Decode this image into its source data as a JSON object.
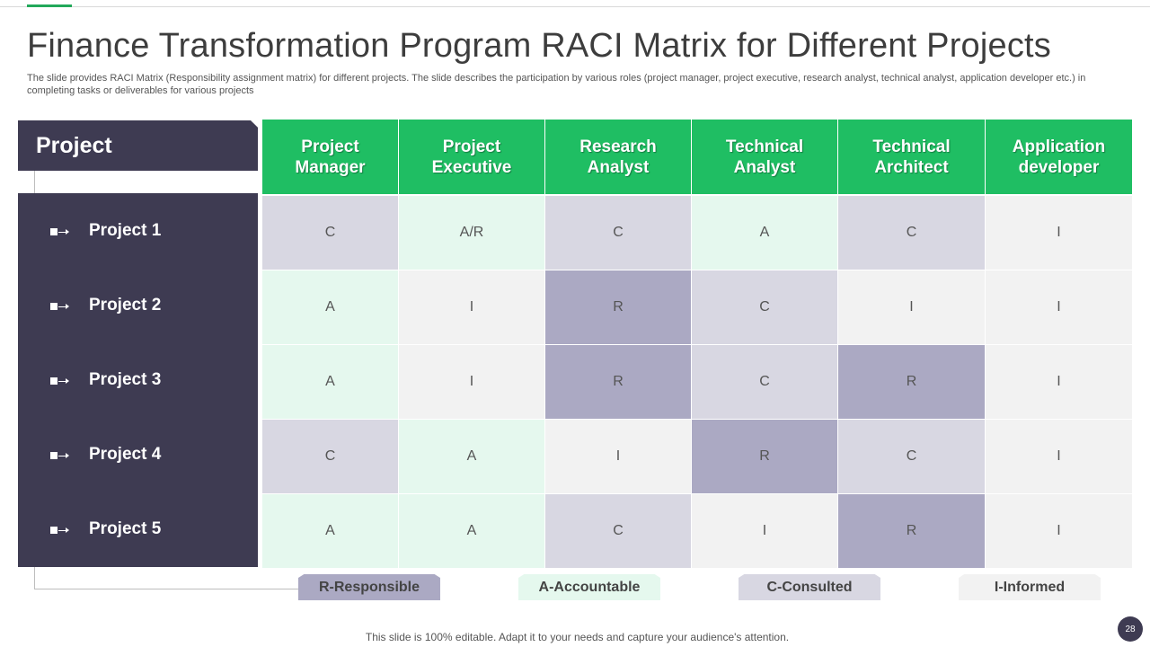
{
  "slide": {
    "title": "Finance Transformation Program RACI Matrix for Different Projects",
    "subtitle": "The slide provides RACI Matrix (Responsibility assignment matrix) for different projects. The slide describes the participation by various roles (project manager, project executive, research analyst, technical analyst, application developer etc.) in completing tasks or deliverables for various projects",
    "footer": "This slide is 100% editable. Adapt it to your needs and capture your audience's attention.",
    "page_number": "28"
  },
  "colors": {
    "header_green": "#1fbe63",
    "sidebar_navy": "#3e3b52",
    "responsible": "#aba9c3",
    "accountable": "#e5f8ee",
    "consulted": "#d8d7e2",
    "informed": "#f2f2f2"
  },
  "matrix": {
    "row_header_title": "Project",
    "columns": [
      "Project Manager",
      "Project Executive",
      "Research Analyst",
      "Technical Analyst",
      "Technical Architect",
      "Application developer"
    ],
    "rows": [
      {
        "label": "Project 1",
        "values": [
          "C",
          "A/R",
          "C",
          "A",
          "C",
          "I"
        ]
      },
      {
        "label": "Project 2",
        "values": [
          "A",
          "I",
          "R",
          "C",
          "I",
          "I"
        ]
      },
      {
        "label": "Project 3",
        "values": [
          "A",
          "I",
          "R",
          "C",
          "R",
          "I"
        ]
      },
      {
        "label": "Project 4",
        "values": [
          "C",
          "A",
          "I",
          "R",
          "C",
          "I"
        ]
      },
      {
        "label": "Project 5",
        "values": [
          "A",
          "A",
          "C",
          "I",
          "R",
          "I"
        ]
      }
    ]
  },
  "legend": {
    "responsible": "R-Responsible",
    "accountable": "A-Accountable",
    "consulted": "C-Consulted",
    "informed": "I-Informed"
  },
  "icons": {
    "row_bullet": "arrow-bullet-icon"
  }
}
